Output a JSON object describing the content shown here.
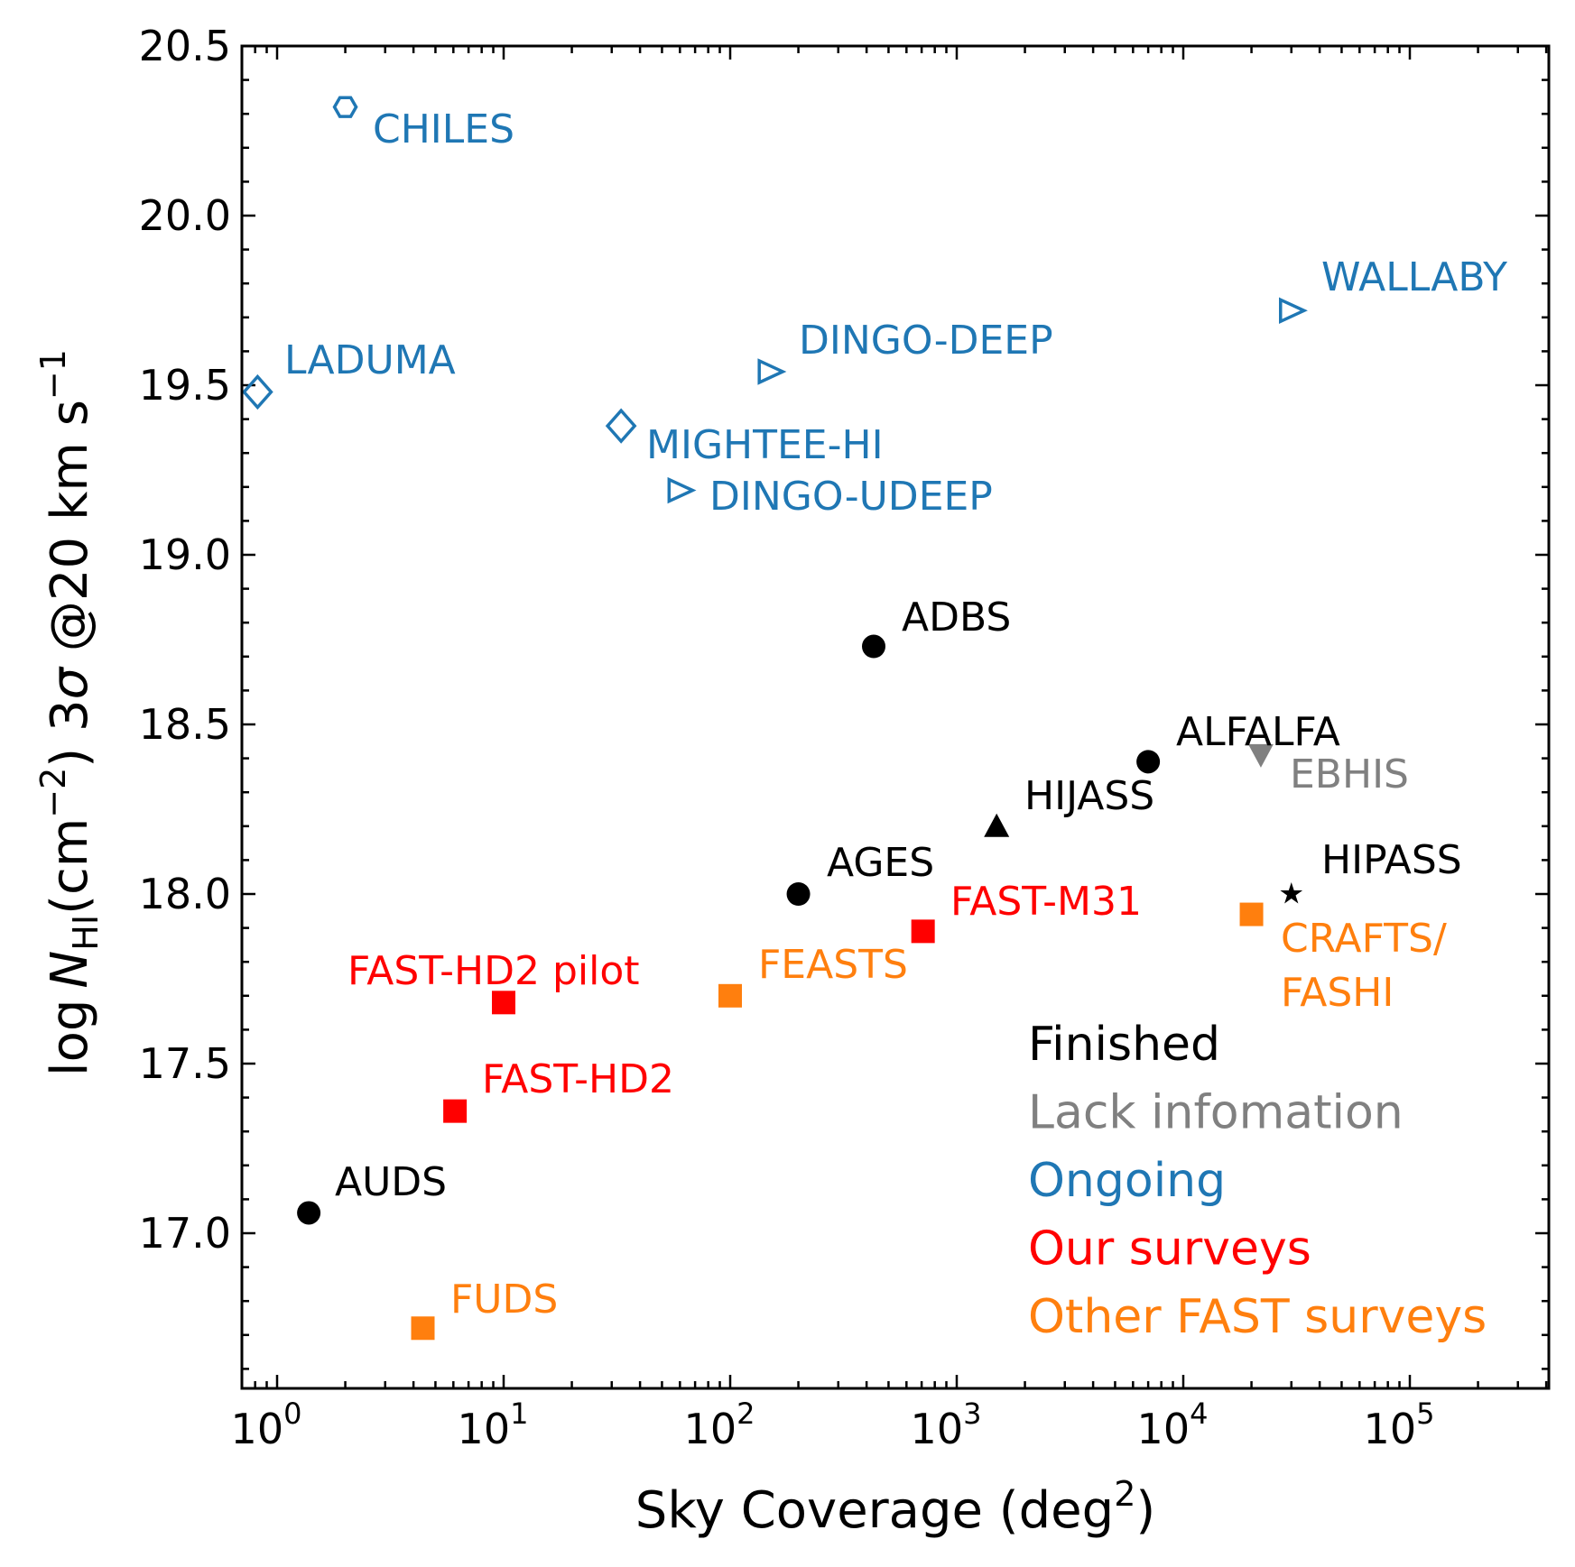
{
  "chart_data": {
    "type": "scatter",
    "xlabel": "Sky Coverage (deg²)",
    "xlabel_main": "Sky Coverage (deg",
    "xlabel_sup": "2",
    "xlabel_end": ")",
    "ylabel_parts": {
      "log": "log",
      "N": "N",
      "sub": "HI",
      "unit": "(cm",
      "unit_sup": "−2",
      "unit_end": ") 3",
      "sigma": "σ",
      "rest": " @20 km s",
      "rest_sup": "−1"
    },
    "xscale": "log",
    "xlim": [
      0.7,
      410000
    ],
    "ylim": [
      16.54,
      20.5
    ],
    "x_ticks": [
      {
        "base": "10",
        "exp": "0"
      },
      {
        "base": "10",
        "exp": "1"
      },
      {
        "base": "10",
        "exp": "2"
      },
      {
        "base": "10",
        "exp": "3"
      },
      {
        "base": "10",
        "exp": "4"
      },
      {
        "base": "10",
        "exp": "5"
      }
    ],
    "y_ticks": [
      "17.0",
      "17.5",
      "18.0",
      "18.5",
      "19.0",
      "19.5",
      "20.0",
      "20.5"
    ],
    "colors": {
      "finished": "#000000",
      "lack": "#808080",
      "ongoing": "#1f77b4",
      "ours": "#ff0000",
      "other_fast": "#ff7f0e"
    },
    "points": [
      {
        "name": "CHILES",
        "x": 2.0,
        "y": 20.32,
        "marker": "hexagon",
        "group": "ongoing"
      },
      {
        "name": "LADUMA",
        "x": 0.82,
        "y": 19.48,
        "marker": "diamond",
        "group": "ongoing"
      },
      {
        "name": "DINGO-DEEP",
        "x": 150,
        "y": 19.54,
        "marker": "triangle-right",
        "group": "ongoing"
      },
      {
        "name": "MIGHTEE-HI",
        "x": 33,
        "y": 19.38,
        "marker": "diamond",
        "group": "ongoing"
      },
      {
        "name": "DINGO-UDEEP",
        "x": 60,
        "y": 19.19,
        "marker": "triangle-right",
        "group": "ongoing"
      },
      {
        "name": "WALLABY",
        "x": 30000,
        "y": 19.72,
        "marker": "triangle-right",
        "group": "ongoing"
      },
      {
        "name": "ADBS",
        "x": 430,
        "y": 18.73,
        "marker": "circle",
        "group": "finished"
      },
      {
        "name": "ALFALFA",
        "x": 7000,
        "y": 18.39,
        "marker": "circle",
        "group": "finished"
      },
      {
        "name": "EBHIS",
        "x": 22000,
        "y": 18.41,
        "marker": "triangle-down",
        "group": "lack"
      },
      {
        "name": "HIJASS",
        "x": 1500,
        "y": 18.2,
        "marker": "triangle-up",
        "group": "finished"
      },
      {
        "name": "AGES",
        "x": 200,
        "y": 18.0,
        "marker": "circle",
        "group": "finished"
      },
      {
        "name": "HIPASS",
        "x": 30000,
        "y": 18.0,
        "marker": "star",
        "group": "finished"
      },
      {
        "name": "FAST-M31",
        "x": 710,
        "y": 17.89,
        "marker": "square",
        "group": "ours"
      },
      {
        "name": "CRAFTS/",
        "name2": "FASHI",
        "x": 20000,
        "y": 17.94,
        "marker": "square",
        "group": "other_fast"
      },
      {
        "name": "FEASTS",
        "x": 100,
        "y": 17.7,
        "marker": "square",
        "group": "other_fast"
      },
      {
        "name": "FAST-HD2 pilot",
        "x": 10,
        "y": 17.68,
        "marker": "square",
        "group": "ours"
      },
      {
        "name": "FAST-HD2",
        "x": 6.1,
        "y": 17.36,
        "marker": "square",
        "group": "ours"
      },
      {
        "name": "AUDS",
        "x": 1.38,
        "y": 17.06,
        "marker": "circle",
        "group": "finished"
      },
      {
        "name": "FUDS",
        "x": 4.4,
        "y": 16.72,
        "marker": "square",
        "group": "other_fast"
      }
    ],
    "legend": [
      {
        "label": "Finished",
        "group": "finished"
      },
      {
        "label": "Lack infomation",
        "group": "lack"
      },
      {
        "label": "Ongoing",
        "group": "ongoing"
      },
      {
        "label": "Our surveys",
        "group": "ours"
      },
      {
        "label": "Other FAST surveys",
        "group": "other_fast"
      }
    ],
    "legend_position": "lower-right"
  }
}
